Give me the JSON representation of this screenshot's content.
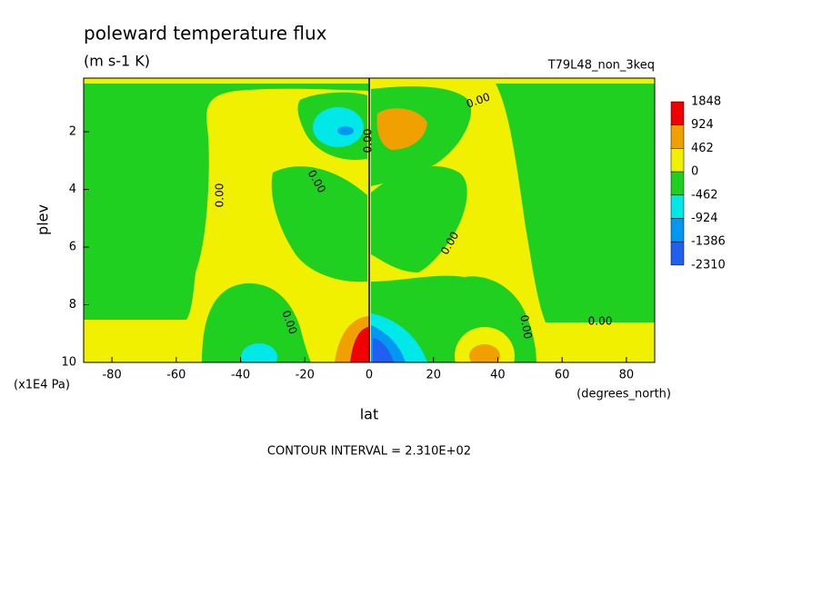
{
  "chart_data": {
    "type": "contour",
    "title": "poleward temperature flux",
    "subtitle": "(m s-1 K)",
    "run_label": "T79L48_non_3keq",
    "ylabel": "plev",
    "yunit": "(x1E4 Pa)",
    "xlabel": "lat",
    "xunit": "(degrees_north)",
    "footer": "CONTOUR INTERVAL = 2.310E+02",
    "xlim": [
      -88.8,
      88.8
    ],
    "xticks": [
      -80,
      -60,
      -40,
      -20,
      0,
      20,
      40,
      60,
      80
    ],
    "ylim": [
      10,
      0.14
    ],
    "yticks": [
      2,
      4,
      6,
      8,
      10
    ],
    "levels": [
      1848,
      924,
      462,
      0,
      -462,
      -924,
      -1386,
      -2310
    ],
    "colors": [
      "#f00000",
      "#f0a000",
      "#f0f000",
      "#20d020",
      "#00e8e8",
      "#0098f0",
      "#2060f0"
    ],
    "contour_labels": [
      "0.00",
      "0.00",
      "0.00",
      "0.00",
      "0.00",
      "0.00",
      "0.00",
      "0.00"
    ]
  }
}
